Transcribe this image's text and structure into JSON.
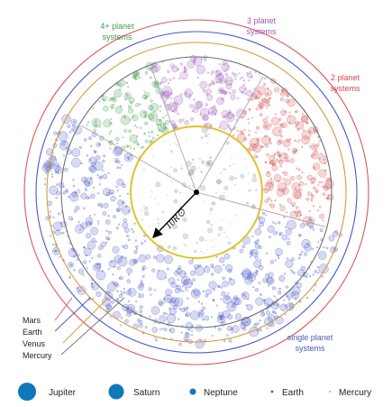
{
  "groups": [
    {
      "id": "multi4",
      "label_lines": [
        "4+ planet",
        "systems"
      ],
      "color": "#3f9a4b"
    },
    {
      "id": "multi3",
      "label_lines": [
        "3 planet",
        "systems"
      ],
      "color": "#9a59b6"
    },
    {
      "id": "multi2",
      "label_lines": [
        "2 planet",
        "systems"
      ],
      "color": "#d14a4a"
    },
    {
      "id": "single",
      "label_lines": [
        "single planet",
        "systems"
      ],
      "color": "#4a58c4"
    }
  ],
  "orbits": [
    {
      "name": "Mars",
      "color": "#e0555a"
    },
    {
      "name": "Earth",
      "color": "#4a55cc"
    },
    {
      "name": "Venus",
      "color": "#d69a3c"
    },
    {
      "name": "Mercury",
      "color": "#707070"
    }
  ],
  "inner_circle": {
    "color": "#e4c12a"
  },
  "scale": {
    "label": "10R⊙"
  },
  "size_legend": [
    {
      "name": "Jupiter",
      "dot": "large",
      "color": "#0f78b8"
    },
    {
      "name": "Saturn",
      "dot": "large",
      "color": "#0f78b8"
    },
    {
      "name": "Neptune",
      "dot": "medium",
      "color": "#0f78b8"
    },
    {
      "name": "Earth",
      "dot": "small",
      "color": "#0f78b8"
    },
    {
      "name": "Mercury",
      "dot": "tiny",
      "color": "#0f78b8"
    }
  ]
}
